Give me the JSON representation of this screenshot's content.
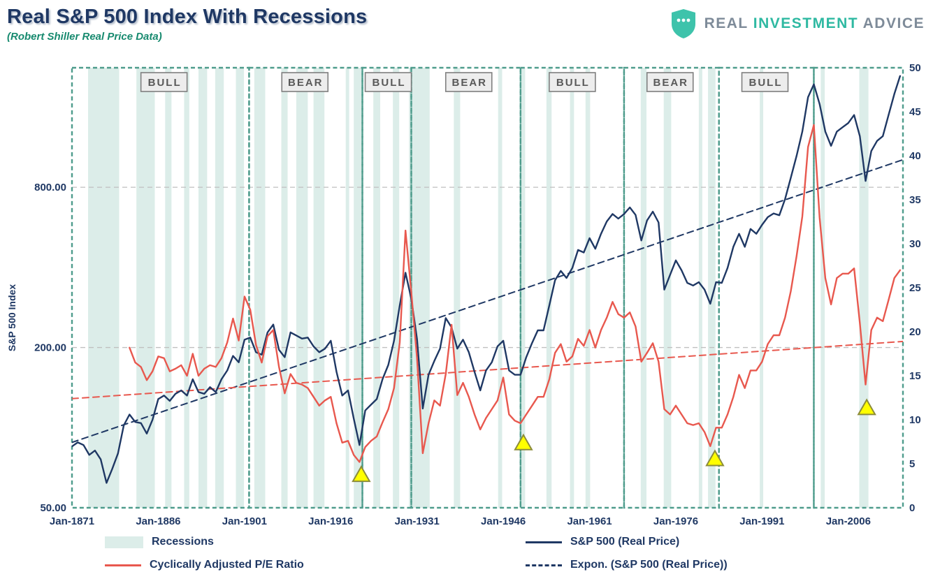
{
  "header": {
    "title": "Real S&P 500 Index With Recessions",
    "subtitle": "(Robert Shiller Real Price Data)"
  },
  "logo": {
    "word1": "REAL",
    "word2": "INVESTMENT",
    "word3": "ADVICE"
  },
  "legend": {
    "recessions": "Recessions",
    "sp500": "S&P 500 (Real Price)",
    "cape": "Cyclically Adjusted P/E Ratio",
    "expon": "Expon. (S&P 500 (Real Price))"
  },
  "colors": {
    "navy": "#1F3864",
    "red": "#E8584E",
    "recession_band": "#DCEDE9",
    "regime_border": "#4E9C8C",
    "grid": "#BFBFBF",
    "label_box_bg": "#EDEDED",
    "label_box_border": "#7F7F7F",
    "label_text": "#595959",
    "marker_fill": "#FFFF00",
    "marker_stroke": "#8C8C3A",
    "title": "#1F3864",
    "subtitle": "#178A6F",
    "logo_gray": "#7E8B99",
    "logo_teal": "#2FB9A2"
  },
  "chart_data": {
    "type": "line",
    "title": "Real S&P 500 Index With Recessions",
    "subtitle": "(Robert Shiller Real Price Data)",
    "left_axis": {
      "label": "S&P 500 Index",
      "scale": "log",
      "min": 50,
      "max": 2250,
      "ticks": [
        {
          "value": 800,
          "label": "800.00",
          "grid": true
        },
        {
          "value": 200,
          "label": "200.00",
          "grid": true
        },
        {
          "value": 50,
          "label": "50.00",
          "grid": false
        }
      ]
    },
    "right_axis": {
      "min": 0,
      "max": 50,
      "ticks": [
        0,
        5,
        10,
        15,
        20,
        25,
        30,
        35,
        40,
        45,
        50
      ]
    },
    "x_axis": {
      "min": 1871,
      "max": 2015.5,
      "ticks": [
        {
          "year": 1871,
          "label": "Jan-1871"
        },
        {
          "year": 1886,
          "label": "Jan-1886"
        },
        {
          "year": 1901,
          "label": "Jan-1901"
        },
        {
          "year": 1916,
          "label": "Jan-1916"
        },
        {
          "year": 1931,
          "label": "Jan-1931"
        },
        {
          "year": 1946,
          "label": "Jan-1946"
        },
        {
          "year": 1961,
          "label": "Jan-1961"
        },
        {
          "year": 1976,
          "label": "Jan-1976"
        },
        {
          "year": 1991,
          "label": "Jan-1991"
        },
        {
          "year": 2006,
          "label": "Jan-2006"
        }
      ]
    },
    "regimes": [
      {
        "label": "BULL",
        "start": 1871,
        "end": 1901.8,
        "label_year": 1887
      },
      {
        "label": "BEAR",
        "start": 1901.8,
        "end": 1921.5,
        "label_year": 1911.5
      },
      {
        "label": "BULL",
        "start": 1921.5,
        "end": 1930,
        "label_year": 1926
      },
      {
        "label": "BEAR",
        "start": 1930,
        "end": 1949,
        "label_year": 1940
      },
      {
        "label": "BULL",
        "start": 1949,
        "end": 1967,
        "label_year": 1958
      },
      {
        "label": "BEAR",
        "start": 1967,
        "end": 1983.5,
        "label_year": 1975
      },
      {
        "label": "BULL",
        "start": 1983.5,
        "end": 2000,
        "label_year": 1991.5
      },
      {
        "label": "",
        "start": 2000,
        "end": 2015.5
      }
    ],
    "recessions": [
      [
        1873.8,
        1879.2
      ],
      [
        1882.2,
        1885.4
      ],
      [
        1887.2,
        1888.3
      ],
      [
        1890.5,
        1891.4
      ],
      [
        1893.0,
        1894.5
      ],
      [
        1895.9,
        1897.4
      ],
      [
        1899.5,
        1900.9
      ],
      [
        1902.7,
        1904.6
      ],
      [
        1907.4,
        1908.5
      ],
      [
        1910.0,
        1912.0
      ],
      [
        1913.0,
        1914.9
      ],
      [
        1918.6,
        1919.2
      ],
      [
        1920.0,
        1921.5
      ],
      [
        1923.4,
        1924.6
      ],
      [
        1926.8,
        1927.9
      ],
      [
        1929.6,
        1933.2
      ],
      [
        1937.4,
        1938.5
      ],
      [
        1945.1,
        1945.8
      ],
      [
        1948.9,
        1949.8
      ],
      [
        1953.5,
        1954.4
      ],
      [
        1957.6,
        1958.3
      ],
      [
        1960.3,
        1961.1
      ],
      [
        1969.9,
        1970.9
      ],
      [
        1973.9,
        1975.2
      ],
      [
        1980.0,
        1980.6
      ],
      [
        1981.6,
        1982.9
      ],
      [
        1990.6,
        1991.2
      ],
      [
        2001.2,
        2001.9
      ],
      [
        2007.9,
        2009.5
      ]
    ],
    "markers": [
      {
        "x": 1921.3,
        "value": 3.8,
        "axis": "right",
        "shape": "triangle"
      },
      {
        "x": 1949.5,
        "value": 7.4,
        "axis": "right",
        "shape": "triangle"
      },
      {
        "x": 1982.8,
        "value": 5.6,
        "axis": "right",
        "shape": "triangle"
      },
      {
        "x": 2009.2,
        "value": 11.4,
        "axis": "right",
        "shape": "triangle"
      }
    ],
    "series": [
      {
        "id": "sp500-trend-line",
        "name": "Expon. (S&P 500 (Real Price))",
        "axis": "left",
        "color": "#1F3864",
        "style": "dashed",
        "width": 2,
        "x": [
          1871,
          2015.5
        ],
        "values": [
          88,
          1015
        ]
      },
      {
        "id": "cape-trend-line",
        "name": "",
        "axis": "right",
        "color": "#E8584E",
        "style": "dashed",
        "width": 2,
        "x": [
          1871,
          2015.5
        ],
        "values": [
          12.4,
          18.9
        ]
      },
      {
        "id": "sp500-line",
        "name": "S&P 500 (Real Price)",
        "axis": "left",
        "color": "#1F3864",
        "style": "solid",
        "width": 2.4,
        "x_start": 1871,
        "x_step": 1,
        "values": [
          85,
          88,
          86,
          79,
          82,
          76,
          62,
          70,
          80,
          102,
          112,
          105,
          104,
          95,
          107,
          128,
          132,
          126,
          134,
          138,
          132,
          152,
          136,
          134,
          142,
          136,
          152,
          164,
          186,
          176,
          214,
          218,
          192,
          188,
          228,
          244,
          196,
          184,
          228,
          222,
          216,
          218,
          202,
          192,
          198,
          212,
          162,
          132,
          138,
          108,
          86,
          116,
          122,
          128,
          152,
          172,
          212,
          288,
          382,
          305,
          215,
          118,
          158,
          178,
          198,
          258,
          238,
          198,
          214,
          192,
          162,
          138,
          164,
          176,
          202,
          212,
          164,
          158,
          158,
          184,
          208,
          232,
          232,
          288,
          358,
          388,
          365,
          398,
          465,
          455,
          515,
          470,
          535,
          595,
          635,
          610,
          635,
          672,
          630,
          505,
          600,
          648,
          590,
          330,
          375,
          425,
          390,
          350,
          342,
          352,
          330,
          292,
          352,
          350,
          398,
          478,
          535,
          478,
          558,
          535,
          578,
          618,
          638,
          628,
          722,
          868,
          1050,
          1295,
          1745,
          1950,
          1645,
          1295,
          1145,
          1295,
          1345,
          1395,
          1495,
          1245,
          845,
          1095,
          1195,
          1245,
          1495,
          1795,
          2095
        ]
      },
      {
        "id": "cape-line",
        "name": "Cyclically Adjusted P/E Ratio",
        "axis": "right",
        "color": "#E8584E",
        "style": "solid",
        "width": 2.4,
        "x_start": 1881,
        "x_step": 1,
        "values": [
          18.2,
          16.5,
          16,
          14.5,
          15.5,
          17.2,
          17,
          15.5,
          15.8,
          16.2,
          15,
          17.5,
          15,
          15.8,
          16.2,
          16,
          17,
          18.8,
          21.5,
          19,
          24,
          22.5,
          18.5,
          16.5,
          19.5,
          20.2,
          16,
          13,
          15.2,
          14.2,
          14,
          13.6,
          12.6,
          11.6,
          12.2,
          12.6,
          9.6,
          7.4,
          7.6,
          6,
          5.2,
          6.9,
          7.6,
          8.1,
          9.7,
          11.2,
          13.6,
          18.8,
          31.5,
          24.5,
          17,
          6.2,
          9.6,
          12.2,
          11.6,
          15.2,
          20.8,
          12.8,
          14.2,
          12.6,
          10.6,
          8.9,
          10.2,
          11.2,
          12.2,
          14.8,
          10.6,
          9.9,
          9.6,
          10.6,
          11.6,
          12.6,
          12.6,
          14.6,
          17.6,
          18.6,
          16.6,
          17.2,
          19.2,
          18.4,
          20.2,
          18.2,
          20.2,
          21.6,
          23.4,
          22,
          21.6,
          22.2,
          20.6,
          16.6,
          17.6,
          18.7,
          16.6,
          11.2,
          10.6,
          11.6,
          10.6,
          9.6,
          9.4,
          9.6,
          8.6,
          7,
          9.1,
          9.1,
          10.6,
          12.6,
          15.1,
          13.6,
          15.6,
          15.6,
          16.6,
          18.6,
          19.6,
          19.6,
          21.6,
          24.6,
          28.6,
          33.1,
          41,
          43.5,
          33,
          26.1,
          23.1,
          26.1,
          26.6,
          26.6,
          27.2,
          21,
          14,
          20.2,
          21.6,
          21.2,
          23.6,
          26.1,
          27
        ]
      }
    ]
  }
}
